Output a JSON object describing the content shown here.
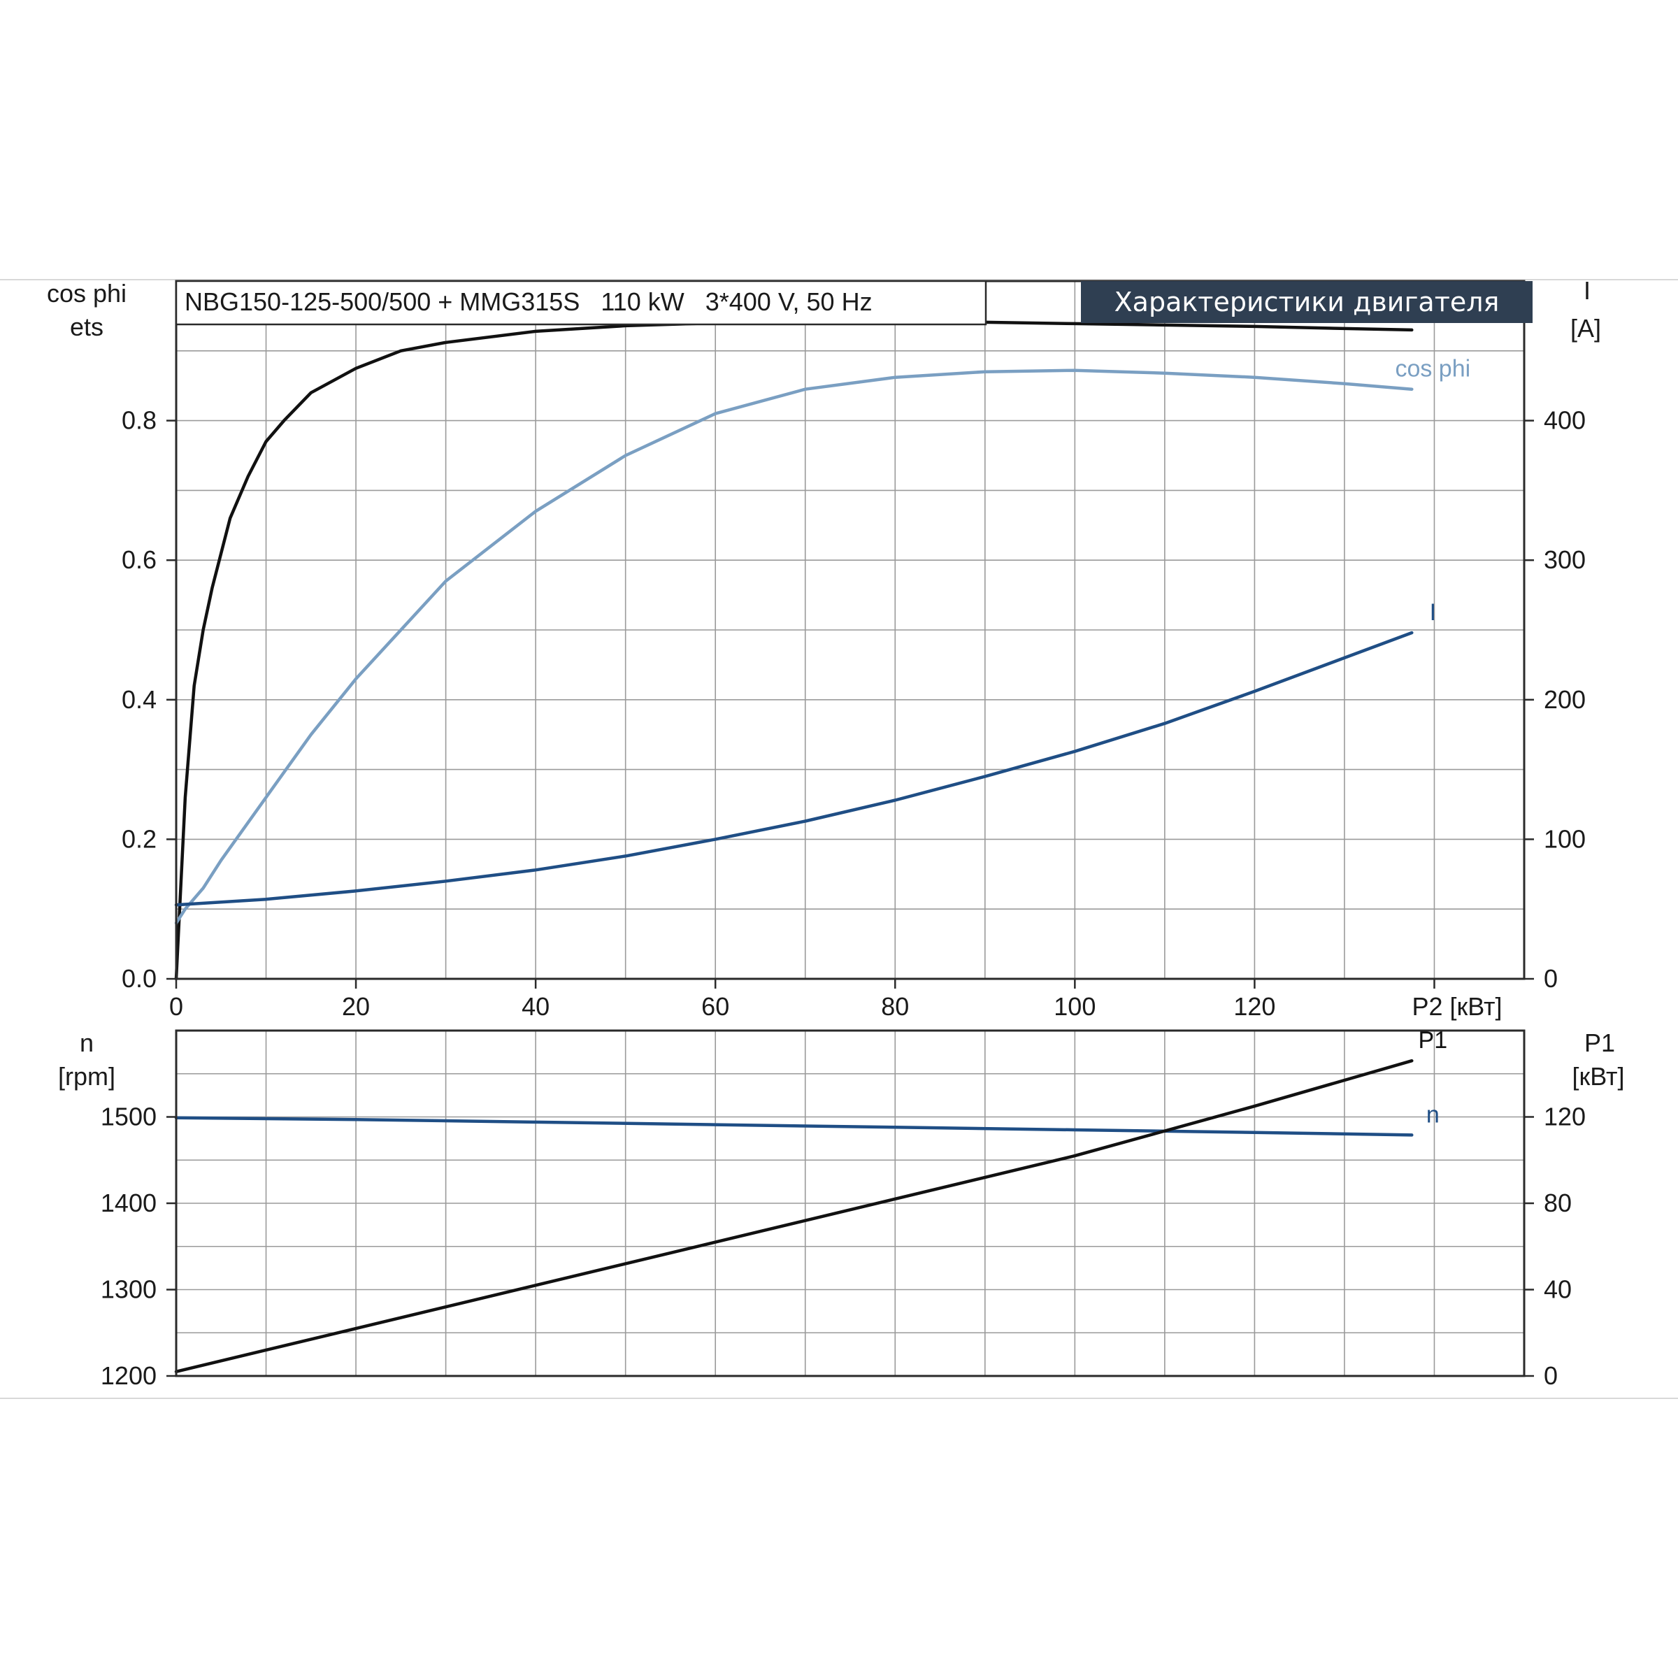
{
  "page_rule_color": "#d8d8d8",
  "colors": {
    "black": "#111111",
    "light_blue": "#7a9fc2",
    "dark_blue": "#1f4e85",
    "title_bg": "#2f3f52",
    "title_fg": "#ffffff"
  },
  "header": {
    "model_text": "NBG150-125-500/500 + MMG315S   110 kW   3*400 V, 50 Hz",
    "badge_text": "Характеристики двигателя"
  },
  "chart_data": [
    {
      "type": "line",
      "x_label": "P2 [кВт]",
      "x_ticks": [
        "0",
        "20",
        "40",
        "60",
        "80",
        "100",
        "120"
      ],
      "xlim": [
        0,
        150
      ],
      "left_axis": {
        "label_line1": "cos phi",
        "label_line2": "ets",
        "ylim": [
          0,
          1.0
        ],
        "ticks": [
          "0.0",
          "0.2",
          "0.4",
          "0.6",
          "0.8"
        ]
      },
      "right_axis": {
        "label_line1": "I",
        "label_line2": "[A]",
        "ylim": [
          0,
          500
        ],
        "ticks": [
          "0",
          "100",
          "200",
          "300",
          "400"
        ]
      },
      "grid": true,
      "series": [
        {
          "name": "ets",
          "axis": "left",
          "color": "#111111",
          "x": [
            0,
            1,
            2,
            3,
            4,
            6,
            8,
            10,
            12,
            15,
            20,
            25,
            30,
            40,
            50,
            60,
            70,
            80,
            90,
            100,
            110,
            120,
            130,
            137.5
          ],
          "y": [
            0,
            0.26,
            0.42,
            0.5,
            0.56,
            0.66,
            0.72,
            0.77,
            0.8,
            0.84,
            0.875,
            0.9,
            0.912,
            0.928,
            0.936,
            0.94,
            0.942,
            0.942,
            0.941,
            0.939,
            0.937,
            0.935,
            0.932,
            0.93
          ]
        },
        {
          "name": "cos phi",
          "axis": "left",
          "color": "#7a9fc2",
          "x": [
            0,
            1,
            3,
            5,
            10,
            15,
            20,
            30,
            40,
            50,
            60,
            70,
            80,
            90,
            100,
            110,
            120,
            130,
            137.5
          ],
          "y": [
            0.08,
            0.1,
            0.13,
            0.17,
            0.26,
            0.35,
            0.43,
            0.57,
            0.67,
            0.75,
            0.81,
            0.845,
            0.862,
            0.87,
            0.872,
            0.868,
            0.862,
            0.853,
            0.845
          ]
        },
        {
          "name": "I",
          "axis": "right",
          "color": "#1f4e85",
          "x": [
            0,
            10,
            20,
            30,
            40,
            50,
            60,
            70,
            80,
            90,
            100,
            110,
            120,
            130,
            137.5
          ],
          "y": [
            53,
            57,
            63,
            70,
            78,
            88,
            100,
            113,
            128,
            145,
            163,
            183,
            206,
            230,
            248
          ]
        }
      ]
    },
    {
      "type": "line",
      "xlim": [
        0,
        150
      ],
      "left_axis": {
        "label_line1": "n",
        "label_line2": "[rpm]",
        "ylim": [
          1200,
          1600
        ],
        "ticks": [
          "1200",
          "1300",
          "1400",
          "1500"
        ]
      },
      "right_axis": {
        "label_line1": "P1",
        "label_line2": "[кВт]",
        "ylim": [
          0,
          160
        ],
        "ticks": [
          "0",
          "40",
          "80",
          "120"
        ]
      },
      "grid": true,
      "series": [
        {
          "name": "n",
          "axis": "left",
          "color": "#1f4e85",
          "x": [
            0,
            20,
            40,
            60,
            80,
            100,
            120,
            137.5
          ],
          "y": [
            1499,
            1497,
            1494,
            1491,
            1488,
            1485,
            1482,
            1479
          ]
        },
        {
          "name": "P1",
          "axis": "right",
          "color": "#111111",
          "x": [
            0,
            20,
            40,
            60,
            80,
            100,
            120,
            137.5
          ],
          "y": [
            2,
            22,
            42,
            62,
            82,
            102,
            125,
            146
          ]
        }
      ]
    }
  ]
}
